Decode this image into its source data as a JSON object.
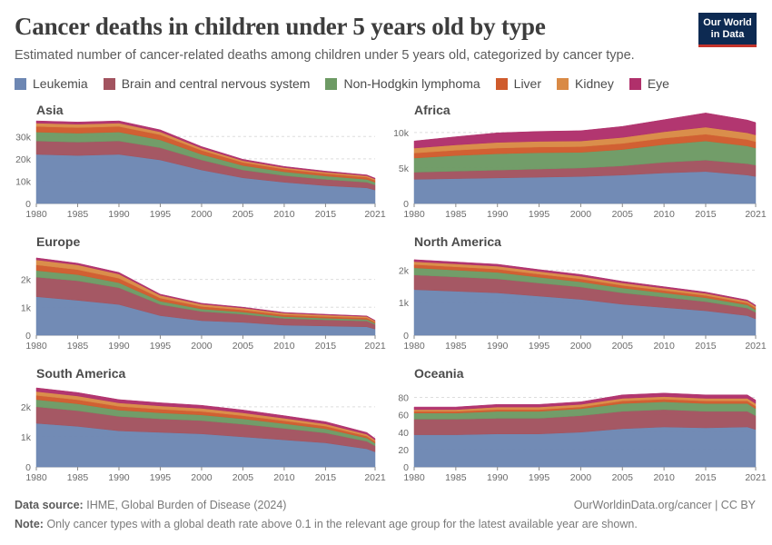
{
  "title": "Cancer deaths in children under 5 years old by type",
  "subtitle": "Estimated number of cancer-related deaths among children under 5 years old, categorized by cancer type.",
  "logo": {
    "line1": "Our World",
    "line2": "in Data"
  },
  "legend": [
    {
      "name": "Leukemia",
      "color": "#6d87b3"
    },
    {
      "name": "Brain and central nervous system",
      "color": "#a2535f"
    },
    {
      "name": "Non-Hodgkin lymphoma",
      "color": "#6d9a64"
    },
    {
      "name": "Liver",
      "color": "#cf5b2c"
    },
    {
      "name": "Kidney",
      "color": "#d98a45"
    },
    {
      "name": "Eye",
      "color": "#b0306b"
    }
  ],
  "footer": {
    "source_label": "Data source:",
    "source_text": "IHME, Global Burden of Disease (2024)",
    "note_label": "Note:",
    "note_text": "Only cancer types with a global death rate above 0.1 in the relevant age group for the latest available year are shown.",
    "right": "OurWorldinData.org/cancer | CC BY"
  },
  "chart_data": [
    {
      "type": "area",
      "title": "Asia",
      "x": [
        1980,
        1985,
        1990,
        1995,
        2000,
        2005,
        2010,
        2015,
        2020,
        2021
      ],
      "ylim": [
        0,
        35000
      ],
      "yticks": [
        0,
        10000,
        20000,
        30000
      ],
      "yticklabels": [
        "0",
        "10k",
        "20k",
        "30k"
      ],
      "xticks": [
        1980,
        1985,
        1990,
        1995,
        2000,
        2005,
        2010,
        2015,
        2021
      ],
      "series": [
        {
          "name": "Leukemia",
          "values": [
            22000,
            21500,
            22000,
            19500,
            15000,
            11500,
            9500,
            8000,
            7000,
            6000
          ]
        },
        {
          "name": "Brain and central nervous system",
          "values": [
            6000,
            6000,
            6000,
            5500,
            4500,
            3500,
            3000,
            2800,
            2500,
            2300
          ]
        },
        {
          "name": "Non-Hodgkin lymphoma",
          "values": [
            4000,
            4000,
            4000,
            3500,
            2500,
            2000,
            1700,
            1500,
            1300,
            1200
          ]
        },
        {
          "name": "Liver",
          "values": [
            2500,
            2500,
            2500,
            2300,
            1800,
            1400,
            1200,
            1100,
            1000,
            900
          ]
        },
        {
          "name": "Kidney",
          "values": [
            1500,
            1500,
            1500,
            1300,
            1000,
            800,
            700,
            650,
            600,
            550
          ]
        },
        {
          "name": "Eye",
          "values": [
            1000,
            1000,
            1000,
            900,
            700,
            600,
            500,
            450,
            400,
            400
          ]
        }
      ]
    },
    {
      "type": "area",
      "title": "Africa",
      "x": [
        1980,
        1985,
        1990,
        1995,
        2000,
        2005,
        2010,
        2015,
        2020,
        2021
      ],
      "ylim": [
        0,
        11000
      ],
      "yticks": [
        0,
        5000,
        10000
      ],
      "yticklabels": [
        "0",
        "5k",
        "10k"
      ],
      "xticks": [
        1980,
        1985,
        1990,
        1995,
        2000,
        2005,
        2010,
        2015,
        2021
      ],
      "series": [
        {
          "name": "Leukemia",
          "values": [
            3400,
            3500,
            3600,
            3700,
            3800,
            4000,
            4300,
            4500,
            4000,
            3800
          ]
        },
        {
          "name": "Brain and central nervous system",
          "values": [
            1000,
            1050,
            1100,
            1150,
            1200,
            1300,
            1500,
            1600,
            1600,
            1600
          ]
        },
        {
          "name": "Non-Hodgkin lymphoma",
          "values": [
            2000,
            2200,
            2300,
            2300,
            2200,
            2300,
            2500,
            2700,
            2500,
            2400
          ]
        },
        {
          "name": "Liver",
          "values": [
            700,
            750,
            800,
            800,
            800,
            850,
            900,
            950,
            900,
            900
          ]
        },
        {
          "name": "Kidney",
          "values": [
            700,
            750,
            800,
            800,
            800,
            850,
            900,
            1000,
            950,
            950
          ]
        },
        {
          "name": "Eye",
          "values": [
            1000,
            1150,
            1350,
            1400,
            1450,
            1550,
            1700,
            2000,
            1800,
            1750
          ]
        }
      ]
    },
    {
      "type": "area",
      "title": "Europe",
      "x": [
        1980,
        1985,
        1990,
        1995,
        2000,
        2005,
        2010,
        2015,
        2020,
        2021
      ],
      "ylim": [
        0,
        2800
      ],
      "yticks": [
        0,
        1000,
        2000
      ],
      "yticklabels": [
        "0",
        "1k",
        "2k"
      ],
      "xticks": [
        1980,
        1985,
        1990,
        1995,
        2000,
        2005,
        2010,
        2015,
        2021
      ],
      "series": [
        {
          "name": "Leukemia",
          "values": [
            1380,
            1250,
            1100,
            700,
            520,
            460,
            360,
            330,
            300,
            220
          ]
        },
        {
          "name": "Brain and central nervous system",
          "values": [
            700,
            700,
            600,
            400,
            330,
            290,
            240,
            220,
            210,
            160
          ]
        },
        {
          "name": "Non-Hodgkin lymphoma",
          "values": [
            240,
            220,
            180,
            120,
            90,
            80,
            65,
            60,
            55,
            45
          ]
        },
        {
          "name": "Liver",
          "values": [
            200,
            180,
            160,
            110,
            90,
            75,
            65,
            60,
            55,
            45
          ]
        },
        {
          "name": "Kidney",
          "values": [
            180,
            170,
            150,
            100,
            80,
            70,
            60,
            55,
            50,
            40
          ]
        },
        {
          "name": "Eye",
          "values": [
            70,
            60,
            60,
            40,
            35,
            30,
            25,
            25,
            20,
            20
          ]
        }
      ]
    },
    {
      "type": "area",
      "title": "North America",
      "x": [
        1980,
        1985,
        1990,
        1995,
        2000,
        2005,
        2010,
        2015,
        2020,
        2021
      ],
      "ylim": [
        0,
        2400
      ],
      "yticks": [
        0,
        1000,
        2000
      ],
      "yticklabels": [
        "0",
        "1k",
        "2k"
      ],
      "xticks": [
        1980,
        1985,
        1990,
        1995,
        2000,
        2005,
        2010,
        2015,
        2021
      ],
      "series": [
        {
          "name": "Leukemia",
          "values": [
            1400,
            1350,
            1300,
            1200,
            1100,
            950,
            850,
            750,
            600,
            500
          ]
        },
        {
          "name": "Brain and central nervous system",
          "values": [
            450,
            440,
            430,
            400,
            380,
            350,
            320,
            280,
            230,
            200
          ]
        },
        {
          "name": "Non-Hodgkin lymphoma",
          "values": [
            220,
            210,
            200,
            180,
            160,
            150,
            130,
            120,
            100,
            80
          ]
        },
        {
          "name": "Liver",
          "values": [
            100,
            100,
            100,
            95,
            90,
            80,
            75,
            70,
            60,
            55
          ]
        },
        {
          "name": "Kidney",
          "values": [
            90,
            90,
            90,
            85,
            80,
            75,
            70,
            65,
            55,
            50
          ]
        },
        {
          "name": "Eye",
          "values": [
            60,
            60,
            60,
            55,
            55,
            50,
            45,
            40,
            35,
            35
          ]
        }
      ]
    },
    {
      "type": "area",
      "title": "South America",
      "x": [
        1980,
        1985,
        1990,
        1995,
        2000,
        2005,
        2010,
        2015,
        2020,
        2021
      ],
      "ylim": [
        0,
        2600
      ],
      "yticks": [
        0,
        1000,
        2000
      ],
      "yticklabels": [
        "0",
        "1k",
        "2k"
      ],
      "xticks": [
        1980,
        1985,
        1990,
        1995,
        2000,
        2005,
        2010,
        2015,
        2021
      ],
      "series": [
        {
          "name": "Leukemia",
          "values": [
            1450,
            1350,
            1200,
            1150,
            1100,
            1000,
            900,
            800,
            600,
            500
          ]
        },
        {
          "name": "Brain and central nervous system",
          "values": [
            550,
            520,
            480,
            450,
            440,
            420,
            380,
            330,
            250,
            200
          ]
        },
        {
          "name": "Non-Hodgkin lymphoma",
          "values": [
            240,
            230,
            210,
            200,
            190,
            180,
            160,
            140,
            110,
            90
          ]
        },
        {
          "name": "Liver",
          "values": [
            140,
            135,
            125,
            120,
            115,
            105,
            95,
            85,
            65,
            55
          ]
        },
        {
          "name": "Kidney",
          "values": [
            130,
            125,
            115,
            110,
            105,
            95,
            85,
            75,
            60,
            50
          ]
        },
        {
          "name": "Eye",
          "values": [
            120,
            115,
            110,
            105,
            100,
            95,
            85,
            75,
            60,
            50
          ]
        }
      ]
    },
    {
      "type": "area",
      "title": "Oceania",
      "x": [
        1980,
        1985,
        1990,
        1995,
        2000,
        2005,
        2010,
        2015,
        2020,
        2021
      ],
      "ylim": [
        0,
        90
      ],
      "yticks": [
        0,
        20,
        40,
        60,
        80
      ],
      "yticklabels": [
        "0",
        "20",
        "40",
        "60",
        "80"
      ],
      "xticks": [
        1980,
        1985,
        1990,
        1995,
        2000,
        2005,
        2010,
        2015,
        2021
      ],
      "series": [
        {
          "name": "Leukemia",
          "values": [
            37,
            37,
            38,
            38,
            40,
            44,
            46,
            45,
            46,
            43
          ]
        },
        {
          "name": "Brain and central nervous system",
          "values": [
            18,
            18,
            18,
            18,
            19,
            20,
            20,
            19,
            18,
            16
          ]
        },
        {
          "name": "Non-Hodgkin lymphoma",
          "values": [
            7,
            7,
            8,
            8,
            8,
            9,
            9,
            9,
            9,
            8
          ]
        },
        {
          "name": "Liver",
          "values": [
            2,
            2,
            2,
            2,
            2,
            3,
            3,
            3,
            3,
            3
          ]
        },
        {
          "name": "Kidney",
          "values": [
            2,
            2,
            3,
            3,
            3,
            3,
            3,
            3,
            3,
            3
          ]
        },
        {
          "name": "Eye",
          "values": [
            3,
            3,
            3,
            3,
            3,
            4,
            4,
            4,
            4,
            4
          ]
        }
      ]
    }
  ]
}
